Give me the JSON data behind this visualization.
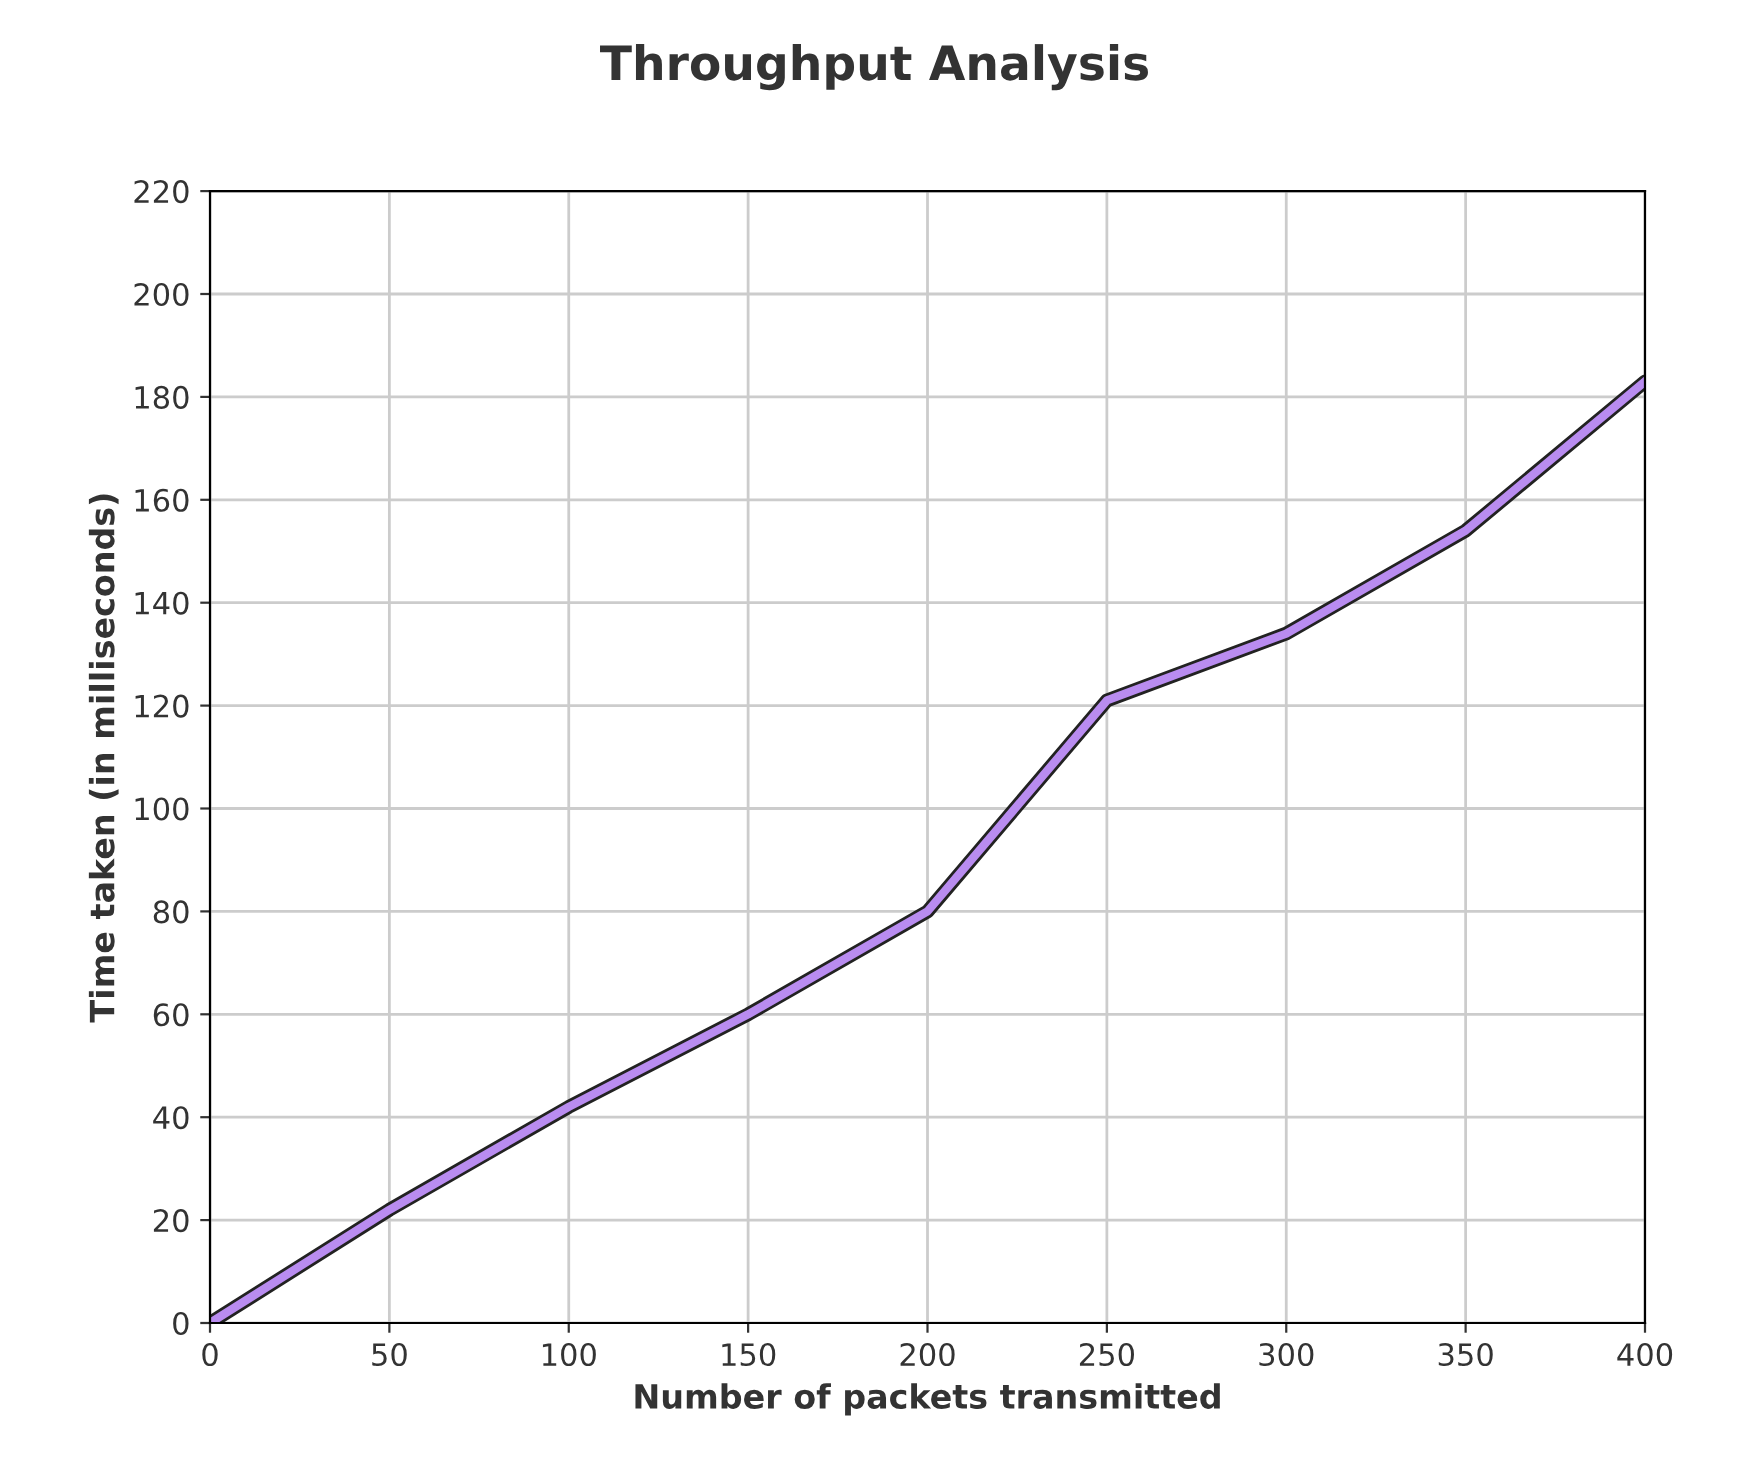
{
  "chart_data": {
    "type": "line",
    "title": "Throughput Analysis",
    "xlabel": "Number of packets transmitted",
    "ylabel": "Time taken (in milliseconds)",
    "x": [
      0,
      50,
      100,
      150,
      200,
      250,
      300,
      350,
      400
    ],
    "series": [
      {
        "color": "#b98cf0",
        "values": [
          0,
          22,
          42,
          60,
          80,
          121,
          134,
          154,
          183
        ]
      }
    ],
    "xlim": [
      0,
      400
    ],
    "xticks": [
      0,
      50,
      100,
      150,
      200,
      250,
      300,
      350,
      400
    ],
    "ylim": [
      0,
      220
    ],
    "yticks": [
      0,
      20,
      40,
      60,
      80,
      100,
      120,
      140,
      160,
      180,
      200,
      220
    ],
    "grid": true,
    "marker": "none",
    "line_style": "solid"
  }
}
